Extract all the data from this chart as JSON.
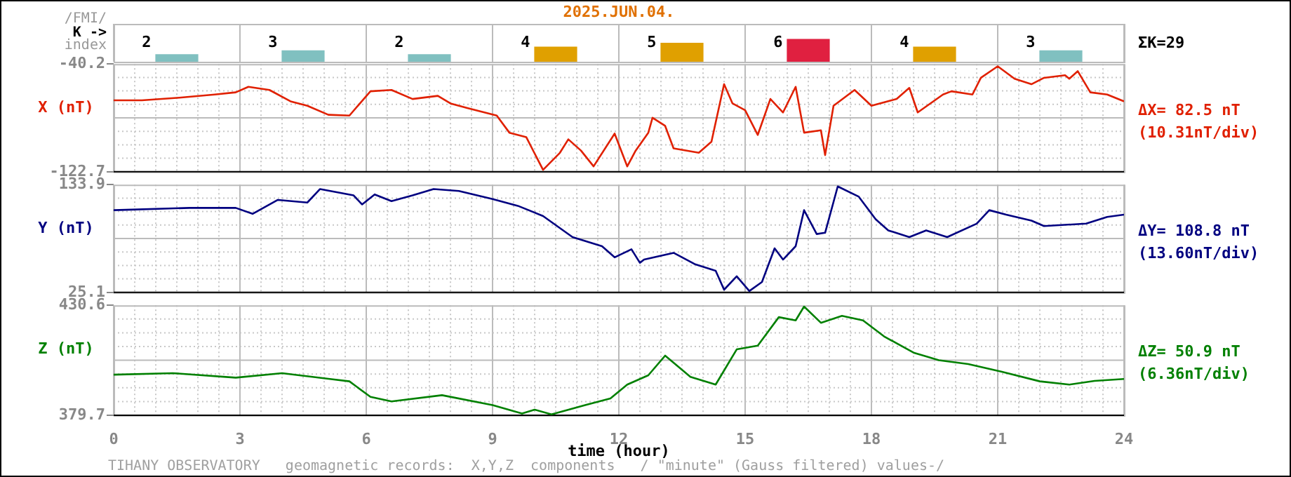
{
  "chart_data": [
    {
      "type": "bar",
      "title": "2025.JUN.04.",
      "ylabel": "K ->",
      "annotations": [
        "/FMI/",
        "index",
        "ΣK=29"
      ],
      "categories": [
        null,
        null,
        null,
        null,
        null,
        null,
        null,
        null
      ],
      "values": [
        2,
        3,
        2,
        4,
        5,
        6,
        4,
        3
      ],
      "colors": [
        "#80c0c0",
        "#80c0c0",
        "#80c0c0",
        "#e0a000",
        "#e0a000",
        "#e02040",
        "#e0a000",
        "#80c0c0"
      ],
      "data_labels": true,
      "tick_labels": false,
      "grid": "x"
    },
    {
      "type": "line",
      "ylabel": "X (nT)",
      "annotations": [
        "ΔX= 82.5 nT",
        "(10.31nT/div)"
      ],
      "xlim": [
        0,
        24
      ],
      "xticks": [
        0,
        3,
        6,
        9,
        12,
        15,
        18,
        21,
        24
      ],
      "ylim": [
        -122.7,
        -40.2
      ],
      "yticks": [
        -122.7,
        -40.2
      ],
      "tick_labels": "y",
      "grid": true,
      "series": [
        {
          "color": "#e02000",
          "x": [
            0,
            0.67,
            1.56,
            2.4,
            2.9,
            3.2,
            3.7,
            4.2,
            4.6,
            5.1,
            5.6,
            5.8,
            6.1,
            6.6,
            7.1,
            7.7,
            8.0,
            8.4,
            9.1,
            9.4,
            9.8,
            10.2,
            10.6,
            10.8,
            11.1,
            11.4,
            11.9,
            12.2,
            12.4,
            12.7,
            12.8,
            13.1,
            13.3,
            13.9,
            14.2,
            14.5,
            14.7,
            15.0,
            15.3,
            15.6,
            15.9,
            16.2,
            16.4,
            16.8,
            16.9,
            17.1,
            17.6,
            18.0,
            18.6,
            18.9,
            19.1,
            19.7,
            19.9,
            20.4,
            20.6,
            21.0,
            21.4,
            21.8,
            22.1,
            22.6,
            22.7,
            22.9,
            23.2,
            23.6,
            24
          ],
          "values": [
            -68.0,
            -68.0,
            -66.0,
            -63.6,
            -61.9,
            -57.7,
            -60.1,
            -68.8,
            -72.2,
            -79.1,
            -79.7,
            -72.2,
            -61.1,
            -60.1,
            -67.0,
            -64.6,
            -70.4,
            -73.9,
            -79.7,
            -92.8,
            -96.2,
            -121.3,
            -108.2,
            -97.9,
            -106.5,
            -118.6,
            -93.5,
            -118.6,
            -106.5,
            -92.8,
            -81.4,
            -87.6,
            -104.8,
            -108.2,
            -99.7,
            -55.7,
            -70.4,
            -75.6,
            -94.5,
            -67.0,
            -77.3,
            -57.7,
            -92.8,
            -91.0,
            -110,
            -72.2,
            -60.1,
            -72.2,
            -67.0,
            -58.5,
            -77.3,
            -63.6,
            -61.1,
            -63.6,
            -50.8,
            -42,
            -51.5,
            -55.7,
            -50.8,
            -48.8,
            -51.5,
            -45.7,
            -61.9,
            -63.6,
            -68.8
          ]
        }
      ]
    },
    {
      "type": "line",
      "ylabel": "Y (nT)",
      "annotations": [
        "ΔY= 108.8 nT",
        "(13.60nT/div)"
      ],
      "xlim": [
        0,
        24
      ],
      "xticks": [
        0,
        3,
        6,
        9,
        12,
        15,
        18,
        21,
        24
      ],
      "ylim": [
        25.1,
        133.9
      ],
      "yticks": [
        25.1,
        133.9
      ],
      "tick_labels": "y",
      "grid": true,
      "series": [
        {
          "color": "#000080",
          "x": [
            0,
            1.8,
            2.9,
            3.3,
            3.9,
            4.6,
            4.9,
            5.7,
            5.9,
            6.2,
            6.6,
            7.1,
            7.6,
            8.2,
            9.0,
            9.6,
            10.2,
            10.9,
            11.6,
            11.9,
            12.3,
            12.5,
            12.6,
            13.3,
            13.8,
            14.3,
            14.5,
            14.8,
            15.1,
            15.4,
            15.7,
            15.9,
            16.2,
            16.4,
            16.7,
            16.9,
            17.2,
            17.7,
            18.1,
            18.4,
            18.9,
            19.3,
            19.8,
            20.5,
            20.8,
            21.2,
            21.8,
            22.1,
            23.1,
            23.6,
            24
          ],
          "values": [
            108.1,
            110.4,
            110.4,
            104.4,
            118.5,
            115.8,
            129.4,
            123,
            113.9,
            124,
            117.2,
            123,
            129.4,
            127.5,
            119.3,
            112.5,
            102.2,
            80.9,
            71.7,
            60.5,
            68.6,
            55,
            58.2,
            65,
            53.7,
            46.9,
            27.8,
            41.4,
            26.5,
            35.6,
            69.6,
            58.2,
            71.7,
            108.1,
            84,
            85.3,
            132.1,
            121.7,
            99,
            87.7,
            80.9,
            87.7,
            80.9,
            94.5,
            108.1,
            103.6,
            97.6,
            92.1,
            94.5,
            101.3,
            103.6
          ]
        }
      ]
    },
    {
      "type": "line",
      "ylabel": "Z (nT)",
      "xlabel": "time (hour)",
      "annotations": [
        "ΔZ= 50.9 nT",
        "(6.36nT/div)",
        "TIHANY OBSERVATORY   geomagnetic records:  X,Y,Z  components   / \"minute\" (Gauss filtered) values-/"
      ],
      "xlim": [
        0,
        24
      ],
      "xticks": [
        0,
        3,
        6,
        9,
        12,
        15,
        18,
        21,
        24
      ],
      "ylim": [
        379.7,
        430.6
      ],
      "yticks": [
        379.7,
        430.6
      ],
      "grid": true,
      "series": [
        {
          "color": "#008000",
          "x": [
            0,
            1.4,
            2.9,
            4,
            5.1,
            5.6,
            6.1,
            6.6,
            7.8,
            9,
            9.7,
            10,
            10.4,
            11.2,
            11.8,
            12.2,
            12.7,
            13.1,
            13.7,
            14.3,
            14.8,
            15.3,
            15.8,
            16.2,
            16.4,
            16.8,
            17.3,
            17.8,
            18.3,
            19,
            19.6,
            20.3,
            21.1,
            22,
            22.7,
            23.3,
            24
          ],
          "values": [
            398.5,
            399.2,
            397.1,
            399.2,
            396.6,
            395.4,
            388.2,
            386.1,
            389,
            384.4,
            380.5,
            382.3,
            380.1,
            384.4,
            387.5,
            393.9,
            398.2,
            407.3,
            397.5,
            393.9,
            410.2,
            411.9,
            425.1,
            423.6,
            430,
            422.5,
            425.7,
            423.6,
            416.2,
            408.7,
            405.2,
            403.4,
            399.8,
            395.4,
            393.9,
            395.6,
            396.5
          ]
        }
      ]
    }
  ]
}
